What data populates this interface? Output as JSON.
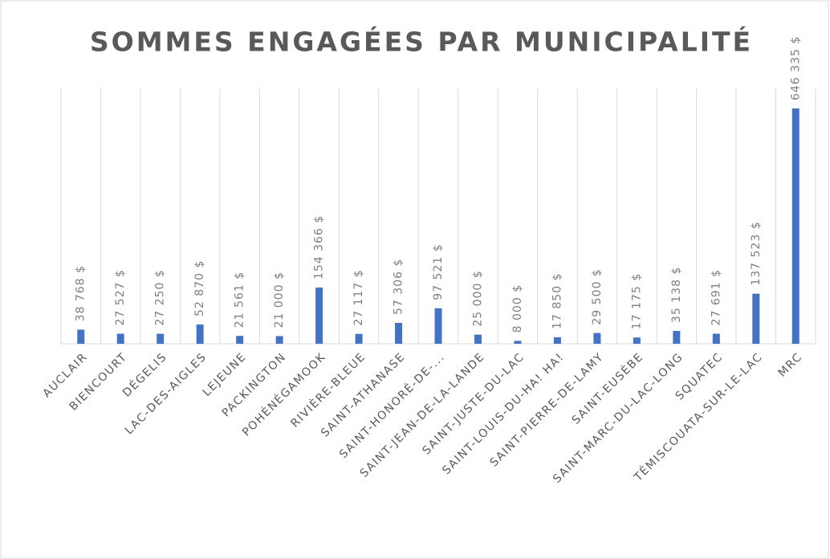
{
  "chart_data": {
    "type": "bar",
    "title": "SOMMES ENGAGÉES PAR MUNICIPALITÉ",
    "categories": [
      "AUCLAIR",
      "BIENCOURT",
      "DÉGELIS",
      "LAC-DES-AIGLES",
      "LEJEUNE",
      "PACKINGTON",
      "POHÉNÉGAMOOK",
      "RIVIÈRE-BLEUE",
      "SAINT-ATHANASE",
      "SAINT-HONORÉ-DE-...",
      "SAINT-JEAN-DE-LA-LANDE",
      "SAINT-JUSTE-DU-LAC",
      "SAINT-LOUIS-DU-HA! HA!",
      "SAINT-PIERRE-DE-LAMY",
      "SAINT-EUSÈBE",
      "SAINT-MARC-DU-LAC-LONG",
      "SQUATEC",
      "TÉMISCOUATA-SUR-LE-LAC",
      "MRC"
    ],
    "values": [
      38768,
      27527,
      27250,
      52870,
      21561,
      21000,
      154366,
      27117,
      57306,
      97521,
      25000,
      8000,
      17850,
      29500,
      17175,
      35138,
      27691,
      137523,
      646335
    ],
    "value_labels": [
      "38 768 $",
      "27 527 $",
      "27 250 $",
      "52 870 $",
      "21 561 $",
      "21 000 $",
      "154 366 $",
      "27 117 $",
      "57 306 $",
      "97 521 $",
      "25 000 $",
      "8 000 $",
      "17 850 $",
      "29 500 $",
      "17 175 $",
      "35 138 $",
      "27 691 $",
      "137 523 $",
      "646 335 $"
    ],
    "color": "#4472c4",
    "grid": true
  }
}
